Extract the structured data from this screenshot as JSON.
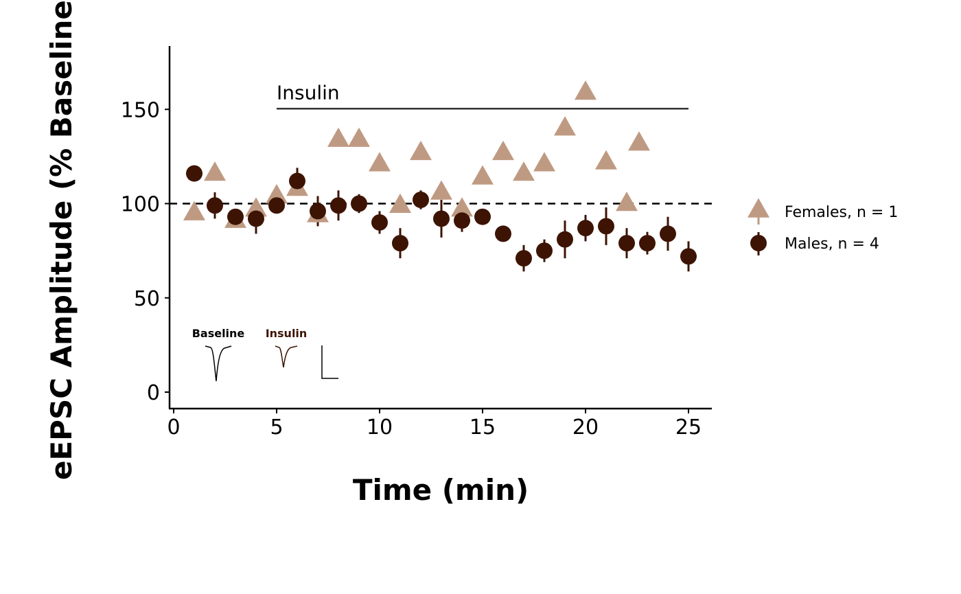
{
  "chart_data": {
    "type": "scatter",
    "xlabel": "Time (min)",
    "ylabel": "eEPSC Amplitude (% Baseline)",
    "xlim": [
      0,
      26
    ],
    "ylim": [
      -8,
      185
    ],
    "x_ticks": [
      0,
      5,
      10,
      15,
      20,
      25
    ],
    "y_ticks": [
      0,
      50,
      100,
      150
    ],
    "reference_line": {
      "y": 100,
      "style": "dashed"
    },
    "treatment": {
      "label": "Insulin",
      "x_start": 5,
      "x_end": 25
    },
    "legend_placement": "right",
    "colors": {
      "females": "#bf9a82",
      "males": "#3d1404",
      "error_bars": "#3d1404"
    },
    "series": [
      {
        "name": "Females, n = 1",
        "marker": "triangle",
        "x": [
          1,
          2,
          3,
          4,
          5,
          6,
          7,
          8,
          9,
          10,
          11,
          12,
          13,
          14,
          15,
          16,
          17,
          18,
          19,
          20,
          21,
          22,
          22.6
        ],
        "y": [
          95,
          116,
          91,
          97,
          104,
          108,
          94,
          134,
          134,
          121,
          99,
          127,
          106,
          97,
          114,
          127,
          116,
          121,
          140,
          159,
          122,
          100,
          132
        ]
      },
      {
        "name": "Males, n = 4",
        "marker": "circle",
        "x": [
          1,
          2,
          3,
          4,
          5,
          6,
          7,
          8,
          9,
          10,
          11,
          12,
          13,
          14,
          15,
          16,
          17,
          18,
          19,
          20,
          21,
          22,
          23,
          24,
          25
        ],
        "y": [
          116,
          99,
          93,
          92,
          99,
          112,
          96,
          99,
          100,
          90,
          79,
          102,
          92,
          91,
          93,
          84,
          71,
          75,
          81,
          87,
          88,
          79,
          79,
          84,
          72
        ],
        "err": [
          0,
          7,
          0,
          8,
          0,
          7,
          8,
          8,
          5,
          6,
          8,
          5,
          10,
          6,
          0,
          0,
          7,
          6,
          10,
          7,
          10,
          8,
          6,
          9,
          8
        ]
      }
    ],
    "inset": {
      "baseline_label": "Baseline",
      "insulin_label": "Insulin"
    }
  }
}
